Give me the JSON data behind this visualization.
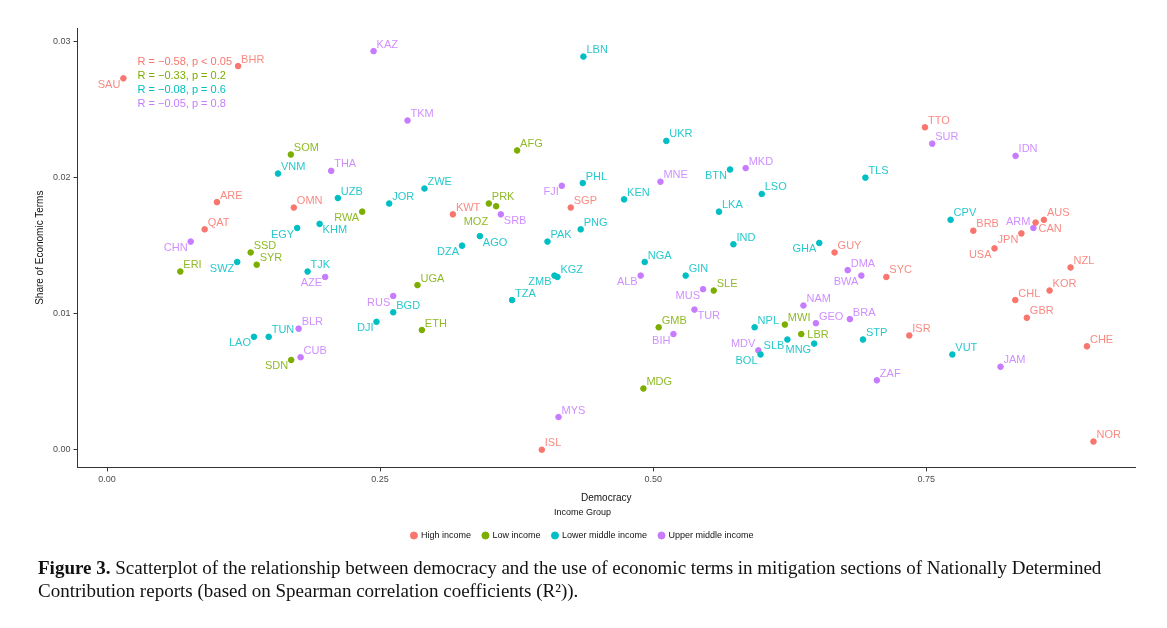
{
  "chart_data": {
    "type": "scatter",
    "xlabel": "Democracy",
    "ylabel": "Share of Economic Terms",
    "legend_title": "Income Group",
    "legend": "bottom",
    "grid": false,
    "marker": "circle",
    "xlim": [
      -0.027,
      0.941
    ],
    "xticks": [
      {
        "value": 0,
        "label": "0.00"
      },
      {
        "value": 0.25,
        "label": "0.25"
      },
      {
        "value": 0.5,
        "label": "0.50"
      },
      {
        "value": 0.75,
        "label": "0.75"
      }
    ],
    "ylim": [
      -0.0013,
      0.031
    ],
    "yticks": [
      {
        "value": 0,
        "label": "0.00"
      },
      {
        "value": 0.01,
        "label": "0.01"
      },
      {
        "value": 0.02,
        "label": "0.02"
      },
      {
        "value": 0.03,
        "label": "0.03"
      }
    ],
    "annotations": [
      "R = −0.58, p < 0.05",
      "R = −0.33, p = 0.2",
      "R = −0.08, p = 0.6",
      "R = −0.05, p = 0.8",
      "Figure 3.",
      "Scatterplot of the relationship between democracy and the use of economic terms in mitigation sections of Nationally Determined Contribution reports (based on Spearman correlation coefficients (R²))."
    ],
    "series": [
      {
        "name": "High income",
        "color": "#f8766d",
        "x": [
          0.015,
          0.12,
          0.1006,
          0.171,
          0.0894,
          0.3166,
          0.4245,
          0.398,
          0.7487,
          0.666,
          0.7134,
          0.793,
          0.8124,
          0.837,
          0.85,
          0.8576,
          0.882,
          0.8628,
          0.8314,
          0.842,
          0.7344,
          0.897,
          0.903
        ],
        "values": [
          0.0273,
          0.0282,
          0.0182,
          0.0178,
          0.0162,
          0.0173,
          0.0178,
          0.0,
          0.0237,
          0.0145,
          0.0127,
          0.0161,
          0.0148,
          0.0159,
          0.0167,
          0.0169,
          0.0134,
          0.0117,
          0.011,
          0.0097,
          0.0084,
          0.0076,
          0.0006
        ],
        "value_labels": [
          "SAU",
          "BHR",
          "ARE",
          "OMN",
          "QAT",
          "KWT",
          "SGP",
          "ISL",
          "TTO",
          "GUY",
          "SYC",
          "BRB",
          "USA",
          "JPN",
          "CAN",
          "AUS",
          "NZL",
          "KOR",
          "CHL",
          "GBR",
          "ISR",
          "CHE",
          "NOR"
        ]
      },
      {
        "name": "Low income",
        "color": "#7cae00",
        "x": [
          0.1683,
          0.2336,
          0.1315,
          0.0671,
          0.137,
          0.1686,
          0.3754,
          0.3495,
          0.3562,
          0.2842,
          0.2882,
          0.505,
          0.491,
          0.5554,
          0.6205,
          0.6355
        ],
        "values": [
          0.0217,
          0.0175,
          0.0145,
          0.0131,
          0.0136,
          0.0066,
          0.022,
          0.0181,
          0.0179,
          0.0121,
          0.0088,
          0.009,
          0.0045,
          0.0117,
          0.0092,
          0.0085
        ],
        "value_labels": [
          "SOM",
          "RWA",
          "SSD",
          "ERI",
          "SYR",
          "SDN",
          "AFG",
          "PRK",
          "MOZ",
          "UGA",
          "ETH",
          "GMB",
          "MDG",
          "SLE",
          "MWI",
          "LBR"
        ]
      },
      {
        "name": "Lower middle income",
        "color": "#00bfc4",
        "x": [
          0.1565,
          0.2113,
          0.2583,
          0.1946,
          0.1741,
          0.1192,
          0.1836,
          0.262,
          0.2467,
          0.1345,
          0.148,
          0.4361,
          0.2906,
          0.325,
          0.3413,
          0.4032,
          0.4336,
          0.4355,
          0.4733,
          0.512,
          0.5703,
          0.5993,
          0.5602,
          0.5734,
          0.4922,
          0.4096,
          0.4123,
          0.3708,
          0.5297,
          0.5928,
          0.6228,
          0.5982,
          0.6473,
          0.692,
          0.7738,
          0.6942,
          0.652,
          0.7722
        ],
        "values": [
          0.0203,
          0.0185,
          0.0181,
          0.0166,
          0.0163,
          0.0138,
          0.0131,
          0.0101,
          0.0094,
          0.0083,
          0.0083,
          0.0289,
          0.0192,
          0.015,
          0.0157,
          0.0153,
          0.0162,
          0.0196,
          0.0184,
          0.0227,
          0.0206,
          0.0188,
          0.0175,
          0.0151,
          0.0138,
          0.0128,
          0.0127,
          0.011,
          0.0128,
          0.009,
          0.0081,
          0.007,
          0.0078,
          0.0081,
          0.007,
          0.02,
          0.0152,
          0.0169
        ],
        "value_labels": [
          "VNM",
          "UZB",
          "JOR",
          "KHM",
          "EGY",
          "SWZ",
          "TJK",
          "BGD",
          "DJI",
          "LAO",
          "TUN",
          "LBN",
          "ZWE",
          "DZA",
          "AGO",
          "PAK",
          "PNG",
          "PHL",
          "KEN",
          "UKR",
          "BTN",
          "LSO",
          "LKA",
          "IND",
          "NGA",
          "ZMB",
          "KGZ",
          "TZA",
          "GIN",
          "NPL",
          "SLB",
          "BOL",
          "MNG",
          "STP",
          "VUT",
          "TLS",
          "GHA",
          "CPV"
        ]
      },
      {
        "name": "Upper middle income",
        "color": "#c77cff",
        "x": [
          0.244,
          0.2052,
          0.0766,
          0.1997,
          0.262,
          0.1754,
          0.1772,
          0.2751,
          0.4163,
          0.3605,
          0.5066,
          0.5846,
          0.4885,
          0.5456,
          0.5377,
          0.5185,
          0.4133,
          0.5962,
          0.6489,
          0.68,
          0.7047,
          0.8179,
          0.7554,
          0.8317,
          0.848,
          0.678,
          0.6905,
          0.6375
        ],
        "values": [
          0.0293,
          0.0205,
          0.0153,
          0.0127,
          0.0113,
          0.0089,
          0.0068,
          0.0242,
          0.0194,
          0.0173,
          0.0197,
          0.0207,
          0.0128,
          0.0118,
          0.0103,
          0.0085,
          0.0024,
          0.0073,
          0.0093,
          0.0096,
          0.0051,
          0.0061,
          0.0225,
          0.0216,
          0.0163,
          0.0132,
          0.0128,
          0.0106
        ],
        "value_labels": [
          "KAZ",
          "THA",
          "CHN",
          "AZE",
          "RUS",
          "BLR",
          "CUB",
          "TKM",
          "FJI",
          "SRB",
          "MNE",
          "MKD",
          "ALB",
          "MUS",
          "TUR",
          "BIH",
          "MYS",
          "MDV",
          "GEO",
          "BRA",
          "ZAF",
          "JAM",
          "SUR",
          "IDN",
          "ARM",
          "DMA",
          "BWA",
          "NAM"
        ]
      }
    ]
  }
}
